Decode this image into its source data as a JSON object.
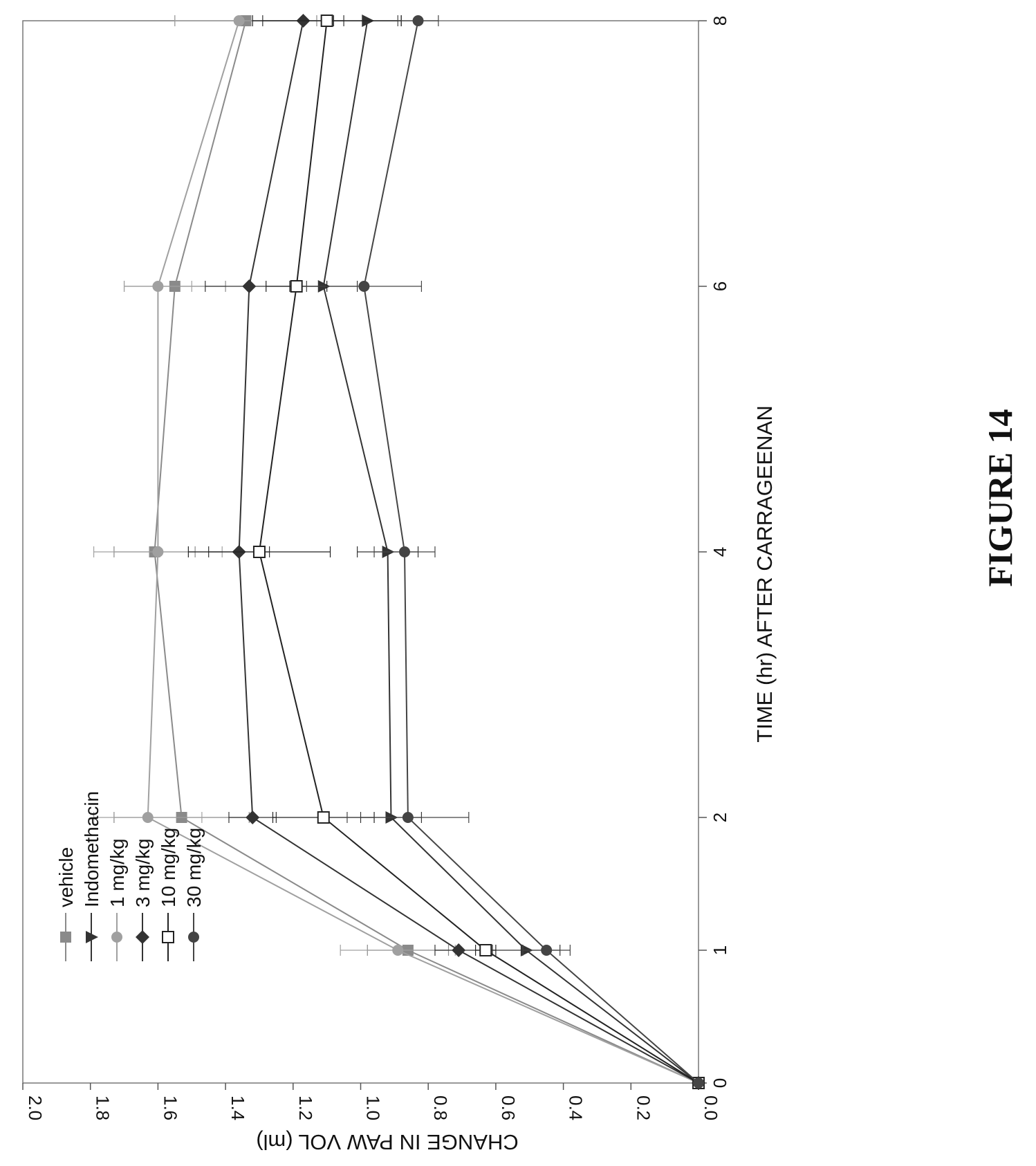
{
  "figure_label": "FIGURE 14",
  "chart_data": {
    "type": "line",
    "orientation": "rotated 90° clockwise (x axis runs top-to-bottom on the page)",
    "xlabel": "TIME (hr) AFTER CARRAGEENAN",
    "ylabel": "CHANGE IN PAW VOL (ml)",
    "x_ticks": [
      "0",
      "1",
      "2",
      "4",
      "6",
      "8"
    ],
    "y_ticks": [
      "0.0",
      "0.2",
      "0.4",
      "0.6",
      "0.8",
      "1.0",
      "1.2",
      "1.4",
      "1.6",
      "1.8",
      "2.0"
    ],
    "xlim": [
      0,
      8
    ],
    "ylim": [
      0,
      2.0
    ],
    "legend_position": "upper-left of plot area (rotated)",
    "series": [
      {
        "name": "vehicle",
        "marker": "square-filled",
        "color": "#8a8a8a",
        "x": [
          0,
          1,
          2,
          4,
          6,
          8
        ],
        "y": [
          0.0,
          0.86,
          1.53,
          1.61,
          1.55,
          1.34
        ],
        "err": [
          0,
          0.12,
          0.2,
          0.12,
          0.15,
          0.21
        ]
      },
      {
        "name": "Indomethacin",
        "marker": "triangle-filled",
        "color": "#333333",
        "x": [
          0,
          1,
          2,
          4,
          6,
          8
        ],
        "y": [
          0.0,
          0.51,
          0.91,
          0.92,
          1.11,
          0.98
        ],
        "err": [
          0,
          0.1,
          0.09,
          0.09,
          0.1,
          0.1
        ]
      },
      {
        "name": "1 mg/kg",
        "marker": "circle-filled",
        "color": "#a0a0a0",
        "x": [
          0,
          1,
          2,
          4,
          6,
          8
        ],
        "y": [
          0.0,
          0.89,
          1.63,
          1.6,
          1.6,
          1.36
        ],
        "err": [
          0,
          0.17,
          0.16,
          0.19,
          0.1,
          0.19
        ]
      },
      {
        "name": "3 mg/kg",
        "marker": "diamond-filled",
        "color": "#333333",
        "x": [
          0,
          1,
          2,
          4,
          6,
          8
        ],
        "y": [
          0.0,
          0.71,
          1.32,
          1.36,
          1.33,
          1.17
        ],
        "err": [
          0,
          0.07,
          0.07,
          0.09,
          0.13,
          0.12
        ]
      },
      {
        "name": "10 mg/kg",
        "marker": "square-open",
        "color": "#222222",
        "x": [
          0,
          1,
          2,
          4,
          6,
          8
        ],
        "y": [
          0.0,
          0.63,
          1.11,
          1.3,
          1.19,
          1.1
        ],
        "err": [
          0,
          0.03,
          0.15,
          0.21,
          0.09,
          0.22
        ]
      },
      {
        "name": "30 mg/kg",
        "marker": "circle-filled",
        "color": "#444444",
        "x": [
          0,
          1,
          2,
          4,
          6,
          8
        ],
        "y": [
          0.0,
          0.45,
          0.86,
          0.87,
          0.99,
          0.83
        ],
        "err": [
          0,
          0.07,
          0.18,
          0.09,
          0.17,
          0.06
        ]
      }
    ]
  }
}
